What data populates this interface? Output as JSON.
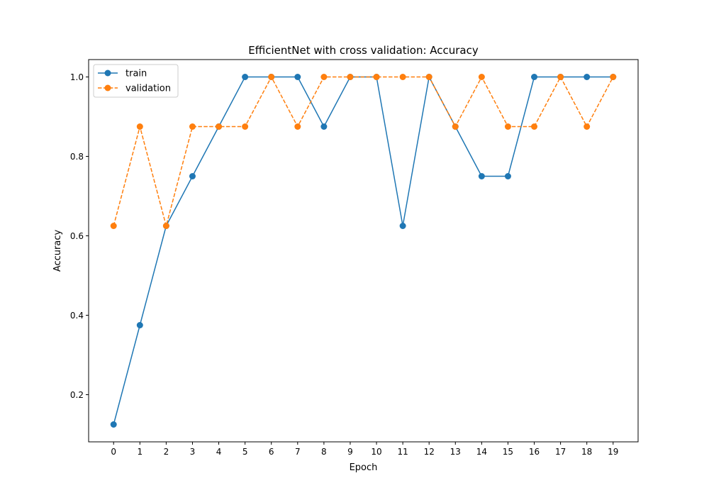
{
  "chart_data": {
    "type": "line",
    "title": "EfficientNet with cross validation: Accuracy",
    "xlabel": "Epoch",
    "ylabel": "Accuracy",
    "x": [
      0,
      1,
      2,
      3,
      4,
      5,
      6,
      7,
      8,
      9,
      10,
      11,
      12,
      13,
      14,
      15,
      16,
      17,
      18,
      19
    ],
    "xticks": [
      0,
      1,
      2,
      3,
      4,
      5,
      6,
      7,
      8,
      9,
      10,
      11,
      12,
      13,
      14,
      15,
      16,
      17,
      18,
      19
    ],
    "yticks": [
      0.2,
      0.4,
      0.6,
      0.8,
      1.0
    ],
    "ytick_labels": [
      "0.2",
      "0.4",
      "0.6",
      "0.8",
      "1.0"
    ],
    "xlim": [
      -0.95,
      19.95
    ],
    "ylim": [
      0.08125,
      1.04375
    ],
    "grid": false,
    "legend_position": "upper-left",
    "series": [
      {
        "name": "train",
        "color": "#1f77b4",
        "linestyle": "solid",
        "marker": "circle",
        "values": [
          0.125,
          0.375,
          0.625,
          0.75,
          0.875,
          1.0,
          1.0,
          1.0,
          0.875,
          1.0,
          1.0,
          0.625,
          1.0,
          0.875,
          0.75,
          0.75,
          1.0,
          1.0,
          1.0,
          1.0
        ]
      },
      {
        "name": "validation",
        "color": "#ff7f0e",
        "linestyle": "dashed",
        "marker": "circle",
        "values": [
          0.625,
          0.875,
          0.625,
          0.875,
          0.875,
          0.875,
          1.0,
          0.875,
          1.0,
          1.0,
          1.0,
          1.0,
          1.0,
          0.875,
          1.0,
          0.875,
          0.875,
          1.0,
          0.875,
          1.0
        ]
      }
    ]
  }
}
